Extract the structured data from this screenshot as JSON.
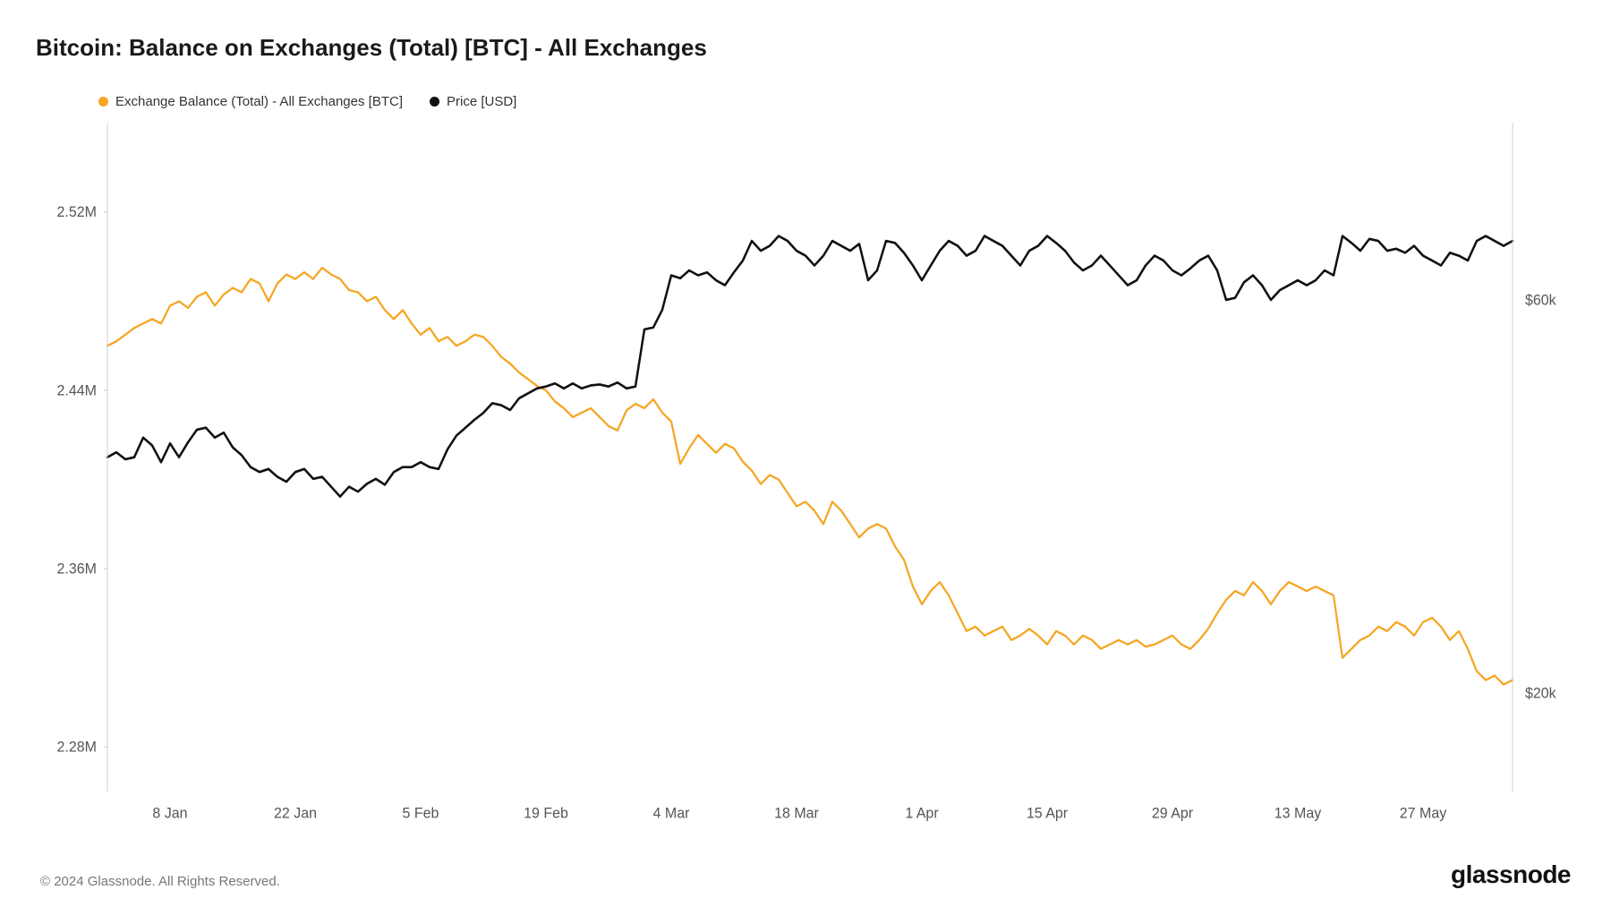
{
  "title": "Bitcoin: Balance on Exchanges (Total) [BTC] - All Exchanges",
  "legend": {
    "series_a": "Exchange Balance (Total) - All Exchanges [BTC]",
    "series_b": "Price [USD]"
  },
  "footer": {
    "copyright": "© 2024 Glassnode. All Rights Reserved.",
    "brand": "glassnode"
  },
  "chart": {
    "type": "line",
    "background_color": "#ffffff",
    "grid_color": "#ffffff",
    "axis_line_color": "#000000",
    "tick_font_size": 16,
    "tick_color": "#555555",
    "x": {
      "domain_min": 0,
      "domain_max": 157,
      "ticks": [
        {
          "pos": 7,
          "label": "8 Jan"
        },
        {
          "pos": 21,
          "label": "22 Jan"
        },
        {
          "pos": 35,
          "label": "5 Feb"
        },
        {
          "pos": 49,
          "label": "19 Feb"
        },
        {
          "pos": 63,
          "label": "4 Mar"
        },
        {
          "pos": 77,
          "label": "18 Mar"
        },
        {
          "pos": 91,
          "label": "1 Apr"
        },
        {
          "pos": 105,
          "label": "15 Apr"
        },
        {
          "pos": 119,
          "label": "29 Apr"
        },
        {
          "pos": 133,
          "label": "13 May"
        },
        {
          "pos": 147,
          "label": "27 May"
        }
      ]
    },
    "y_left": {
      "domain_min": 2.26,
      "domain_max": 2.56,
      "ticks": [
        {
          "val": 2.28,
          "label": "2.28M"
        },
        {
          "val": 2.36,
          "label": "2.36M"
        },
        {
          "val": 2.44,
          "label": "2.44M"
        },
        {
          "val": 2.52,
          "label": "2.52M"
        }
      ]
    },
    "y_right": {
      "domain_min": 10,
      "domain_max": 78,
      "ticks": [
        {
          "val": 20,
          "label": "$20k"
        },
        {
          "val": 60,
          "label": "$60k"
        }
      ]
    },
    "series": [
      {
        "name": "balance",
        "axis": "left",
        "color": "#f5a623",
        "line_width": 2.2,
        "data": [
          2.46,
          2.462,
          2.465,
          2.468,
          2.47,
          2.472,
          2.47,
          2.478,
          2.48,
          2.477,
          2.482,
          2.484,
          2.478,
          2.483,
          2.486,
          2.484,
          2.49,
          2.488,
          2.48,
          2.488,
          2.492,
          2.49,
          2.493,
          2.49,
          2.495,
          2.492,
          2.49,
          2.485,
          2.484,
          2.48,
          2.482,
          2.476,
          2.472,
          2.476,
          2.47,
          2.465,
          2.468,
          2.462,
          2.464,
          2.46,
          2.462,
          2.465,
          2.464,
          2.46,
          2.455,
          2.452,
          2.448,
          2.445,
          2.442,
          2.44,
          2.435,
          2.432,
          2.428,
          2.43,
          2.432,
          2.428,
          2.424,
          2.422,
          2.431,
          2.434,
          2.432,
          2.436,
          2.43,
          2.426,
          2.407,
          2.414,
          2.42,
          2.416,
          2.412,
          2.416,
          2.414,
          2.408,
          2.404,
          2.398,
          2.402,
          2.4,
          2.394,
          2.388,
          2.39,
          2.386,
          2.38,
          2.39,
          2.386,
          2.38,
          2.374,
          2.378,
          2.38,
          2.378,
          2.37,
          2.364,
          2.352,
          2.344,
          2.35,
          2.354,
          2.348,
          2.34,
          2.332,
          2.334,
          2.33,
          2.332,
          2.334,
          2.328,
          2.33,
          2.333,
          2.33,
          2.326,
          2.332,
          2.33,
          2.326,
          2.33,
          2.328,
          2.324,
          2.326,
          2.328,
          2.326,
          2.328,
          2.325,
          2.326,
          2.328,
          2.33,
          2.326,
          2.324,
          2.328,
          2.333,
          2.34,
          2.346,
          2.35,
          2.348,
          2.354,
          2.35,
          2.344,
          2.35,
          2.354,
          2.352,
          2.35,
          2.352,
          2.35,
          2.348,
          2.32,
          2.324,
          2.328,
          2.33,
          2.334,
          2.332,
          2.336,
          2.334,
          2.33,
          2.336,
          2.338,
          2.334,
          2.328,
          2.332,
          2.324,
          2.314,
          2.31,
          2.312,
          2.308,
          2.31
        ]
      },
      {
        "name": "price",
        "axis": "right",
        "color": "#111111",
        "line_width": 2.5,
        "data": [
          44.0,
          44.5,
          43.8,
          44.0,
          46.0,
          45.2,
          43.5,
          45.4,
          44.0,
          45.5,
          46.8,
          47.0,
          46.0,
          46.5,
          45.0,
          44.2,
          43.0,
          42.5,
          42.8,
          42.0,
          41.5,
          42.5,
          42.8,
          41.8,
          42.0,
          41.0,
          40.0,
          41.0,
          40.5,
          41.3,
          41.8,
          41.2,
          42.5,
          43.0,
          43.0,
          43.5,
          43.0,
          42.8,
          44.8,
          46.2,
          47.0,
          47.8,
          48.5,
          49.5,
          49.3,
          48.8,
          50.0,
          50.5,
          51.0,
          51.2,
          51.5,
          51.0,
          51.5,
          51.0,
          51.3,
          51.4,
          51.2,
          51.6,
          51.0,
          51.2,
          57.0,
          57.2,
          59.0,
          62.5,
          62.2,
          63.0,
          62.5,
          62.8,
          62.0,
          61.5,
          62.8,
          64.0,
          66.0,
          65.0,
          65.5,
          66.5,
          66.0,
          65.0,
          64.5,
          63.5,
          64.5,
          66.0,
          65.5,
          65.0,
          65.7,
          62.0,
          63.0,
          66.0,
          65.8,
          64.8,
          63.5,
          62.0,
          63.5,
          65.0,
          66.0,
          65.5,
          64.5,
          65.0,
          66.5,
          66.0,
          65.5,
          64.5,
          63.5,
          65.0,
          65.5,
          66.5,
          65.8,
          65.0,
          63.8,
          63.0,
          63.5,
          64.5,
          63.5,
          62.5,
          61.5,
          62.0,
          63.5,
          64.5,
          64.0,
          63.0,
          62.5,
          63.2,
          64.0,
          64.5,
          63.0,
          60.0,
          60.2,
          61.8,
          62.5,
          61.5,
          60.0,
          61.0,
          61.5,
          62.0,
          61.5,
          62.0,
          63.0,
          62.5,
          66.5,
          65.8,
          65.0,
          66.2,
          66.0,
          65.0,
          65.2,
          64.8,
          65.5,
          64.5,
          64.0,
          63.5,
          64.8,
          64.5,
          64.0,
          66.0,
          66.5,
          66.0,
          65.5,
          66.0
        ]
      }
    ]
  }
}
